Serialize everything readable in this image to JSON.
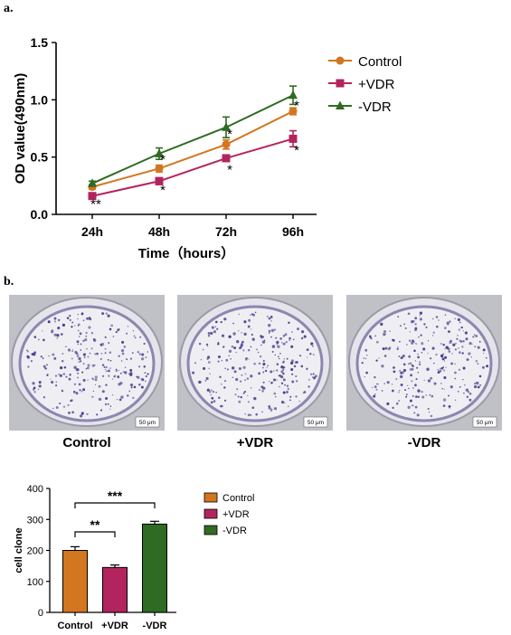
{
  "panel_a_label": "a.",
  "panel_b_label": "b.",
  "colors": {
    "control": "#D2761F",
    "plus_vdr": "#B3245E",
    "minus_vdr": "#2F6B22",
    "stain": "#4B3A8C"
  },
  "chart_data": [
    {
      "type": "line",
      "title": "",
      "xlabel": "Time（hours）",
      "ylabel": "OD value(490nm)",
      "categories": [
        "24h",
        "48h",
        "72h",
        "96h"
      ],
      "ylim": [
        0,
        1.5
      ],
      "yticks": [
        "0.0",
        "0.5",
        "1.0",
        "1.5"
      ],
      "legend_position": "right",
      "series": [
        {
          "name": "Control",
          "marker": "circle",
          "values": [
            0.24,
            0.4,
            0.61,
            0.9
          ],
          "errors": [
            0.02,
            0.03,
            0.04,
            0.03
          ]
        },
        {
          "name": "+VDR",
          "marker": "square",
          "values": [
            0.16,
            0.29,
            0.49,
            0.66
          ],
          "errors": [
            0.02,
            0.03,
            0.02,
            0.07
          ]
        },
        {
          "name": "-VDR",
          "marker": "triangle",
          "values": [
            0.27,
            0.53,
            0.76,
            1.04
          ],
          "errors": [
            0.02,
            0.05,
            0.09,
            0.08
          ]
        }
      ],
      "annotations": [
        {
          "text": "**",
          "category": "24h",
          "y": 0.1
        },
        {
          "text": "*",
          "category": "48h",
          "y": 0.49
        },
        {
          "text": "*",
          "category": "48h",
          "y": 0.22
        },
        {
          "text": "*",
          "category": "72h",
          "y": 0.71
        },
        {
          "text": "*",
          "category": "72h",
          "y": 0.4
        },
        {
          "text": "*",
          "category": "96h",
          "y": 0.96
        },
        {
          "text": "*",
          "category": "96h",
          "y": 0.57
        }
      ]
    },
    {
      "type": "bar",
      "title": "",
      "xlabel": "",
      "ylabel": "cell clone",
      "categories": [
        "Control",
        "+VDR",
        "-VDR"
      ],
      "values": [
        200,
        145,
        285
      ],
      "errors": [
        12,
        8,
        9
      ],
      "ylim": [
        0,
        400
      ],
      "yticks": [
        "0",
        "100",
        "200",
        "300",
        "400"
      ],
      "legend_position": "right",
      "legend": [
        "Control",
        "+VDR",
        "-VDR"
      ],
      "significance": [
        {
          "from": "Control",
          "to": "+VDR",
          "text": "**"
        },
        {
          "from": "Control",
          "to": "-VDR",
          "text": "***"
        }
      ]
    }
  ],
  "dishes": [
    {
      "caption": "Control",
      "scale": "50 μm"
    },
    {
      "caption": "+VDR",
      "scale": "50 μm"
    },
    {
      "caption": "-VDR",
      "scale": "50 μm"
    }
  ]
}
